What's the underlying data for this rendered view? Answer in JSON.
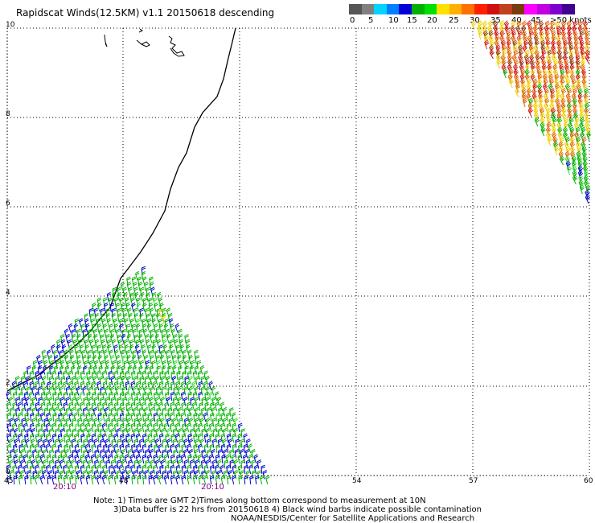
{
  "title": "Rapidscat Winds(12.5KM) v1.1 20150618 descending",
  "colorbar": {
    "swatches": [
      "#555555",
      "#808080",
      "#00d4ff",
      "#0080ff",
      "#0000d8",
      "#00b000",
      "#00e000",
      "#ffe000",
      "#ffb000",
      "#ff7000",
      "#ff2000",
      "#d01010",
      "#c04020",
      "#7a3a10",
      "#ff00ff",
      "#c000e0",
      "#8000d0",
      "#400090"
    ],
    "labels": [
      "0",
      "5",
      "10",
      "15",
      "20",
      "25",
      "30",
      "35",
      "40",
      "45",
      ">50 knots"
    ]
  },
  "axes": {
    "y_ticks": [
      "10",
      "8",
      "6",
      "4",
      "2",
      "0"
    ],
    "x_ticks": [
      "45",
      "48",
      "",
      "54",
      "57",
      "60"
    ]
  },
  "pass_times": [
    "20:10",
    "20:10"
  ],
  "footer": [
    "Note: 1) Times are GMT 2)Times along bottom correspond to measurement at 10N",
    "3)Data buffer is 22 hrs from 20150618 4) Black wind barbs indicate possible contamination",
    "NOAA/NESDIS/Center for Satellite Applications and Research"
  ],
  "colors": {
    "blue": "#0000cc",
    "green": "#00b000",
    "lime": "#33dd33",
    "yellow": "#f0d000",
    "orange": "#e06000",
    "red": "#d01010",
    "brown": "#8b3a0a",
    "time": "#800080"
  }
}
